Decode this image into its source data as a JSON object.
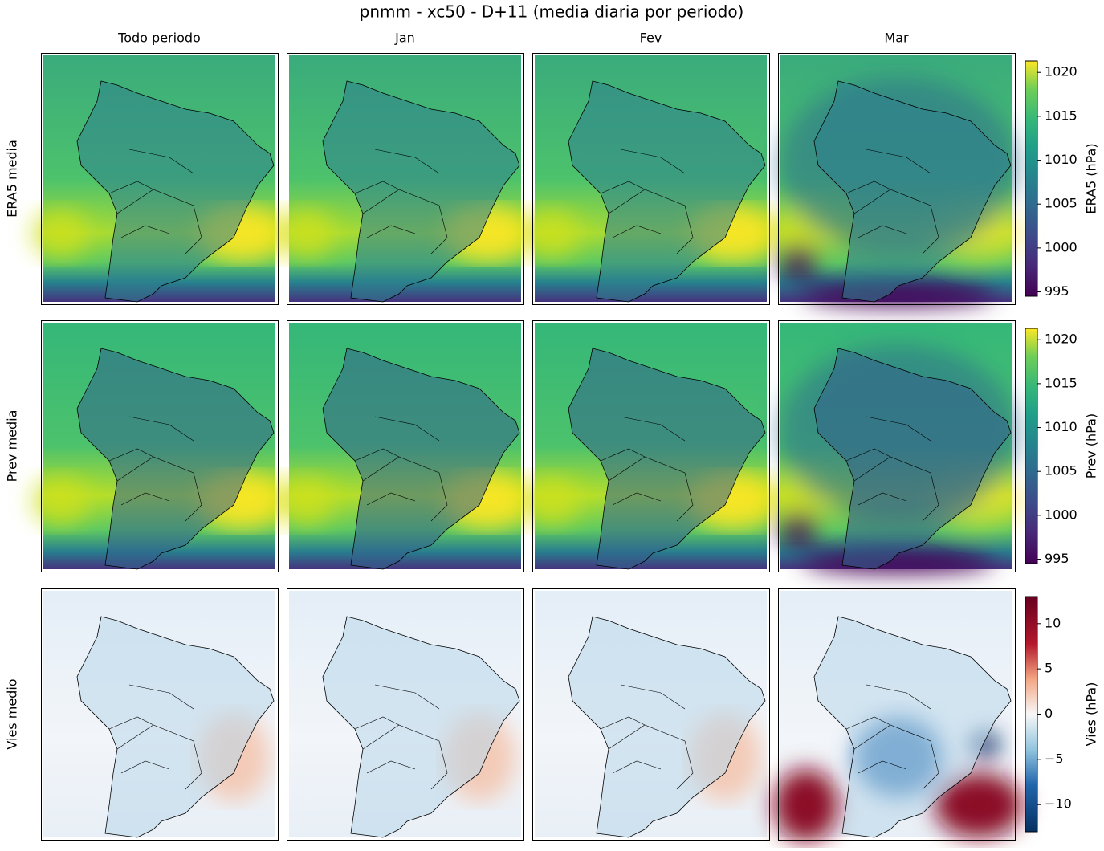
{
  "title": "pnmm - xc50 - D+11 (media diaria por periodo)",
  "columns": [
    "Todo periodo",
    "Jan",
    "Fev",
    "Mar"
  ],
  "rows": [
    {
      "label": "ERA5 media",
      "colorbar": {
        "label": "ERA5 (hPa)",
        "cmap": "viridis",
        "ylim": [
          994.5,
          1021.3
        ],
        "yticks": [
          995,
          1000,
          1005,
          1010,
          1015,
          1020
        ]
      }
    },
    {
      "label": "Prev media",
      "colorbar": {
        "label": "Prev (hPa)",
        "cmap": "viridis",
        "ylim": [
          994.5,
          1021.3
        ],
        "yticks": [
          995,
          1000,
          1005,
          1010,
          1015,
          1020
        ]
      }
    },
    {
      "label": "Vies medio",
      "colorbar": {
        "label": "Vies (hPa)",
        "cmap": "RdBu_r",
        "ylim": [
          -13,
          13
        ],
        "yticks": [
          {
            "value": -10,
            "label": "−10"
          },
          {
            "value": -5,
            "label": "−5"
          },
          0,
          5,
          10
        ]
      }
    }
  ]
}
